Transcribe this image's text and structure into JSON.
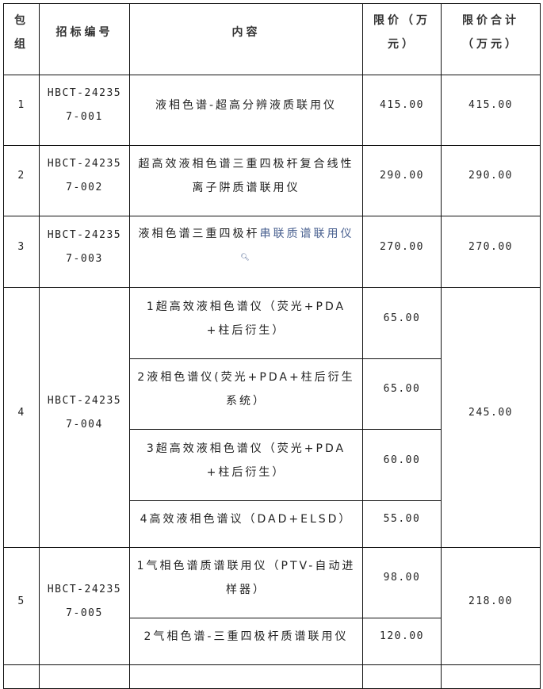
{
  "header": {
    "package": "包组",
    "bid_no": "招标编号",
    "content": "内容",
    "limit": "限价（万元）",
    "limit_total": "限价合计（万元）"
  },
  "rows": [
    {
      "package": "1",
      "bid_no": "HBCT-242357-001",
      "items": [
        {
          "content": "液相色谱-超高分辨液质联用仪",
          "limit": "415.00"
        }
      ],
      "total": "415.00"
    },
    {
      "package": "2",
      "bid_no": "HBCT-242357-002",
      "items": [
        {
          "content": "超高效液相色谱三重四极杆复合线性离子阱质谱联用仪",
          "limit": "290.00"
        }
      ],
      "total": "290.00"
    },
    {
      "package": "3",
      "bid_no": "HBCT-242357-003",
      "items": [
        {
          "content_plain": "液相色谱三重四极杆",
          "content_link": "串联质谱联用仪",
          "limit": "270.00"
        }
      ],
      "total": "270.00",
      "link_color": "#4a6190",
      "search_icon": "search-icon"
    },
    {
      "package": "4",
      "bid_no": "HBCT-242357-004",
      "items": [
        {
          "content": "1超高效液相色谱仪（荧光+PDA+柱后衍生）",
          "limit": "65.00"
        },
        {
          "content": "2液相色谱仪(荧光+PDA+柱后衍生系统）",
          "limit": "65.00"
        },
        {
          "content": "3超高效液相色谱仪（荧光+PDA+柱后衍生）",
          "limit": "60.00"
        },
        {
          "content": "4高效液相色谱议（DAD+ELSD）",
          "limit": "55.00"
        }
      ],
      "total": "245.00"
    },
    {
      "package": "5",
      "bid_no": "HBCT-242357-005",
      "items": [
        {
          "content": "1气相色谱质谱联用仪（PTV-自动进样器）",
          "limit": "98.00"
        },
        {
          "content": "2气相色谱-三重四极杆质谱联用仪",
          "limit": "120.00"
        }
      ],
      "total": "218.00"
    }
  ]
}
